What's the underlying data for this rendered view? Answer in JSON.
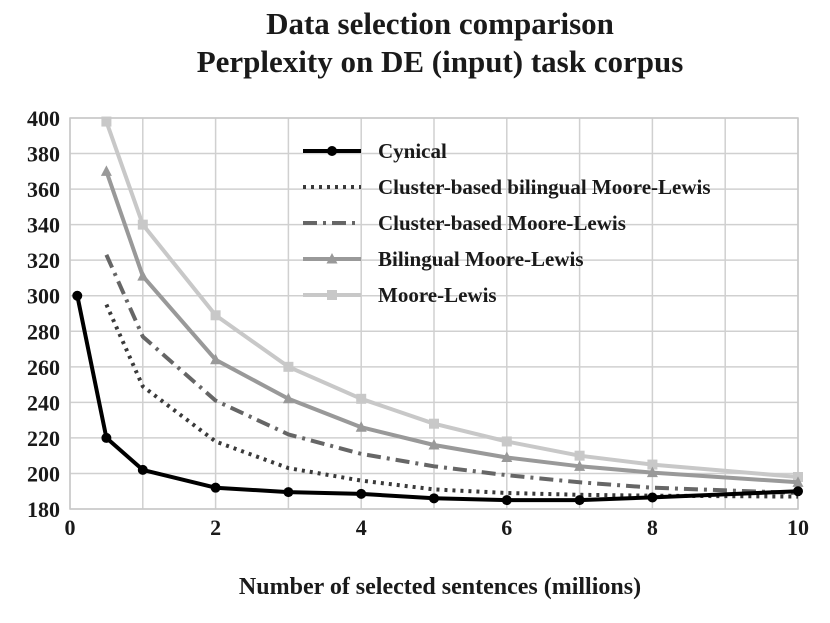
{
  "chart_data": {
    "type": "line",
    "title": "Data selection comparison",
    "subtitle": "Perplexity on DE (input) task corpus",
    "xlabel": "Number of selected sentences (millions)",
    "ylabel": "",
    "xlim": [
      0,
      10
    ],
    "ylim": [
      180,
      400
    ],
    "xticks": [
      0,
      2,
      4,
      6,
      8,
      10
    ],
    "yticks": [
      180,
      200,
      220,
      240,
      260,
      280,
      300,
      320,
      340,
      360,
      380,
      400
    ],
    "grid": true,
    "legend_position": "top-right",
    "series": [
      {
        "name": "Cynical",
        "color": "#000000",
        "dash": "solid",
        "marker": "circle",
        "x": [
          0.1,
          0.5,
          1,
          2,
          3,
          4,
          5,
          6,
          7,
          8,
          10
        ],
        "y": [
          300,
          220,
          202,
          192,
          189.5,
          188.5,
          186,
          185,
          185,
          186.5,
          190
        ]
      },
      {
        "name": "Cluster-based bilingual Moore-Lewis",
        "color": "#3a3a3a",
        "dash": "dotted",
        "marker": "none",
        "x": [
          0.5,
          1,
          2,
          3,
          4,
          5,
          6,
          7,
          8,
          10
        ],
        "y": [
          295,
          249,
          218,
          203,
          196,
          191,
          189,
          188,
          187.5,
          187
        ]
      },
      {
        "name": "Cluster-based Moore-Lewis",
        "color": "#666666",
        "dash": "dashdot",
        "marker": "none",
        "x": [
          0.5,
          1,
          2,
          3,
          4,
          5,
          6,
          7,
          8,
          10
        ],
        "y": [
          323,
          277,
          241,
          222,
          211,
          204,
          199,
          195,
          192,
          189
        ]
      },
      {
        "name": "Bilingual Moore-Lewis",
        "color": "#999999",
        "dash": "solid",
        "marker": "triangle",
        "x": [
          0.5,
          1,
          2,
          3,
          4,
          5,
          6,
          7,
          8,
          10
        ],
        "y": [
          370,
          311,
          264,
          242,
          226,
          216,
          209,
          204,
          200.5,
          195
        ]
      },
      {
        "name": "Moore-Lewis",
        "color": "#c8c8c8",
        "dash": "solid",
        "marker": "square",
        "x": [
          0.5,
          1,
          2,
          3,
          4,
          5,
          6,
          7,
          8,
          10
        ],
        "y": [
          398,
          340,
          289,
          260,
          242,
          228,
          218,
          210,
          205,
          198
        ]
      }
    ]
  }
}
